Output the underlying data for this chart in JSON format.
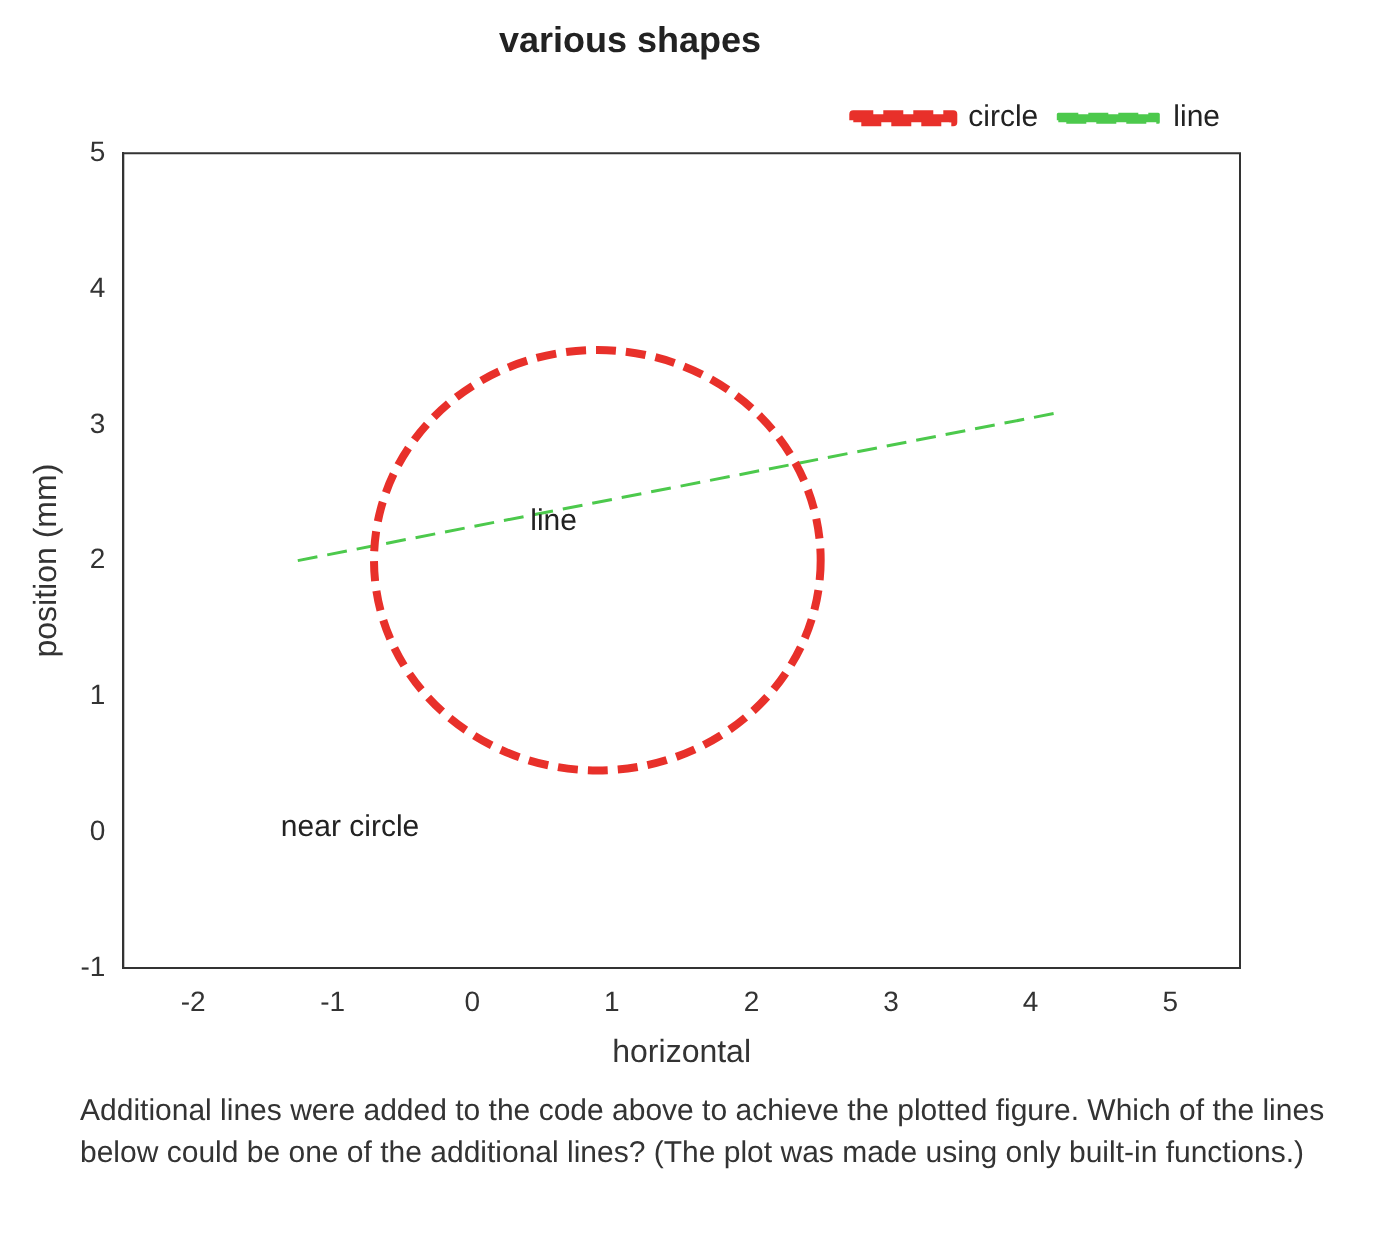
{
  "chart_data": {
    "type": "line",
    "title": "various shapes",
    "xlabel": "horizontal",
    "ylabel": "position (mm)",
    "xlim": [
      -2.5,
      5.5
    ],
    "xticks": [
      -2,
      -1,
      0,
      1,
      2,
      3,
      4,
      5
    ],
    "ylim": [
      -1,
      5
    ],
    "yticks": [
      -1,
      0,
      1,
      2,
      3,
      4,
      5
    ],
    "grid": false,
    "legend": "top right",
    "marker": "none",
    "series": [
      {
        "name": "circle",
        "color": "#e8302a",
        "line_style": "dashed"
      },
      {
        "name": "line",
        "color": "#4cc94c",
        "line_style": "dashed",
        "x": [
          -1.25,
          4.2
        ],
        "values": [
          2.0,
          3.09
        ]
      }
    ],
    "annotations": [
      {
        "text": "line",
        "x": 0.75,
        "y": 2.4
      },
      "near circle",
      "Additional lines were added to the code above to achieve the plotted figure. Which of the lines below could be one of the additional lines? (The plot was made using only built-in functions.)"
    ]
  }
}
